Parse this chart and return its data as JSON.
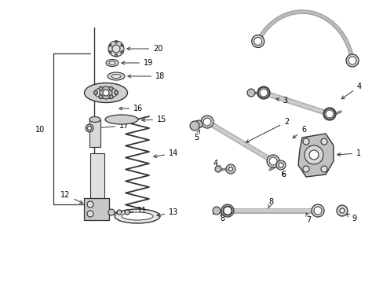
{
  "bg_color": "#ffffff",
  "fig_width": 4.89,
  "fig_height": 3.6,
  "dpi": 100,
  "text_color": "#000000",
  "line_color": "#333333",
  "part_color": "#888888",
  "font_size": 7.0
}
